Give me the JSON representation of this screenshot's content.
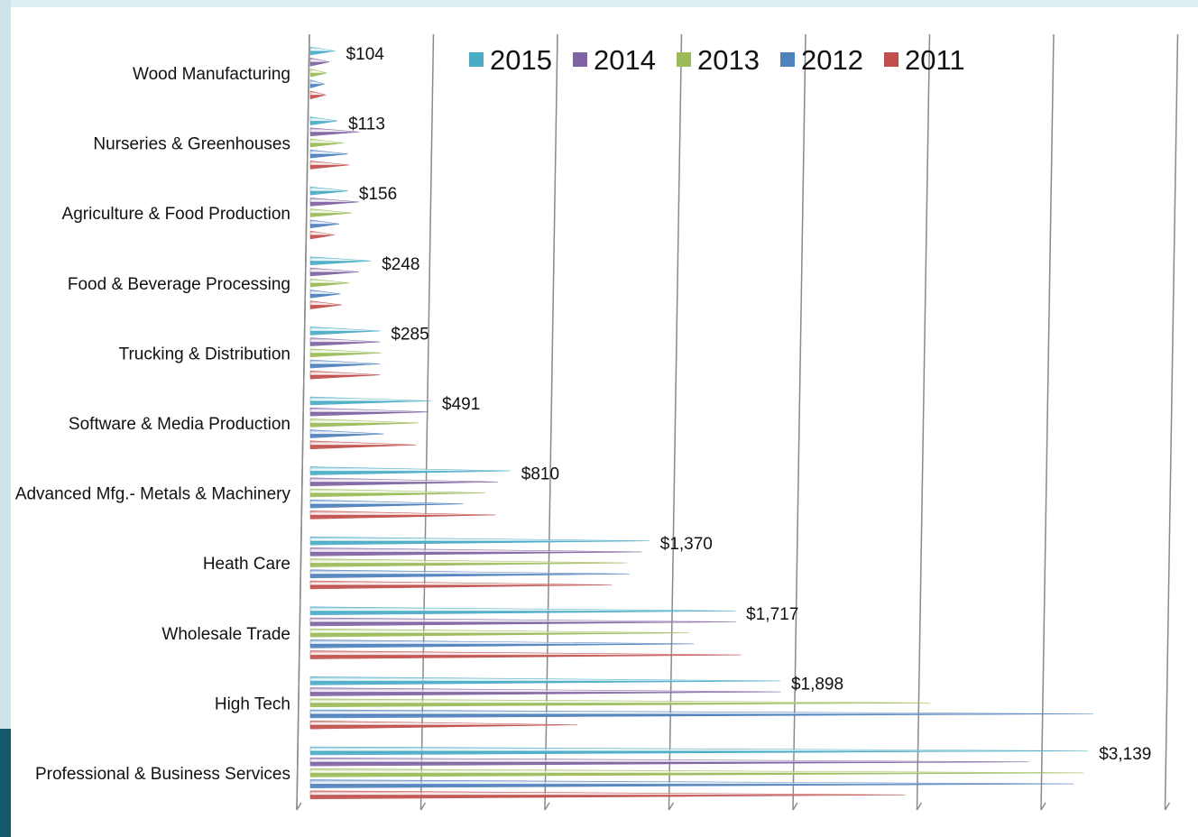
{
  "chart_data": {
    "type": "bar",
    "orientation": "horizontal",
    "bar_shape": "cone",
    "legend_position": "top",
    "grid": true,
    "categories": [
      "Wood Manufacturing",
      "Nurseries & Greenhouses",
      "Agriculture & Food Production",
      "Food &  Beverage Processing",
      "Trucking & Distribution",
      "Software & Media Production",
      "Advanced Mfg.- Metals & Machinery",
      "Heath Care",
      "Wholesale Trade",
      "High Tech",
      "Professional & Business Services"
    ],
    "series": [
      {
        "name": "2015",
        "color": "#4bacc6",
        "values": [
          104,
          113,
          156,
          248,
          285,
          491,
          810,
          1370,
          1717,
          1898,
          3139
        ]
      },
      {
        "name": "2014",
        "color": "#8064a2",
        "values": [
          80,
          200,
          200,
          200,
          285,
          480,
          760,
          1340,
          1720,
          1900,
          2900
        ]
      },
      {
        "name": "2013",
        "color": "#9bbb59",
        "values": [
          70,
          140,
          170,
          160,
          290,
          440,
          710,
          1280,
          1530,
          2500,
          3120
        ]
      },
      {
        "name": "2012",
        "color": "#4f81bd",
        "values": [
          60,
          155,
          120,
          125,
          285,
          300,
          620,
          1290,
          1550,
          3160,
          3080
        ]
      },
      {
        "name": "2011",
        "color": "#c0504d",
        "values": [
          65,
          160,
          100,
          130,
          285,
          430,
          750,
          1220,
          1740,
          1080,
          2400
        ]
      }
    ],
    "data_labels": [
      "$104",
      "$113",
      "$156",
      "$248",
      "$285",
      "$491",
      "$810",
      "$1,370",
      "$1,717",
      "$1,898",
      "$3,139"
    ],
    "xlim": [
      0,
      3500
    ],
    "x_gridline_step": 500
  }
}
